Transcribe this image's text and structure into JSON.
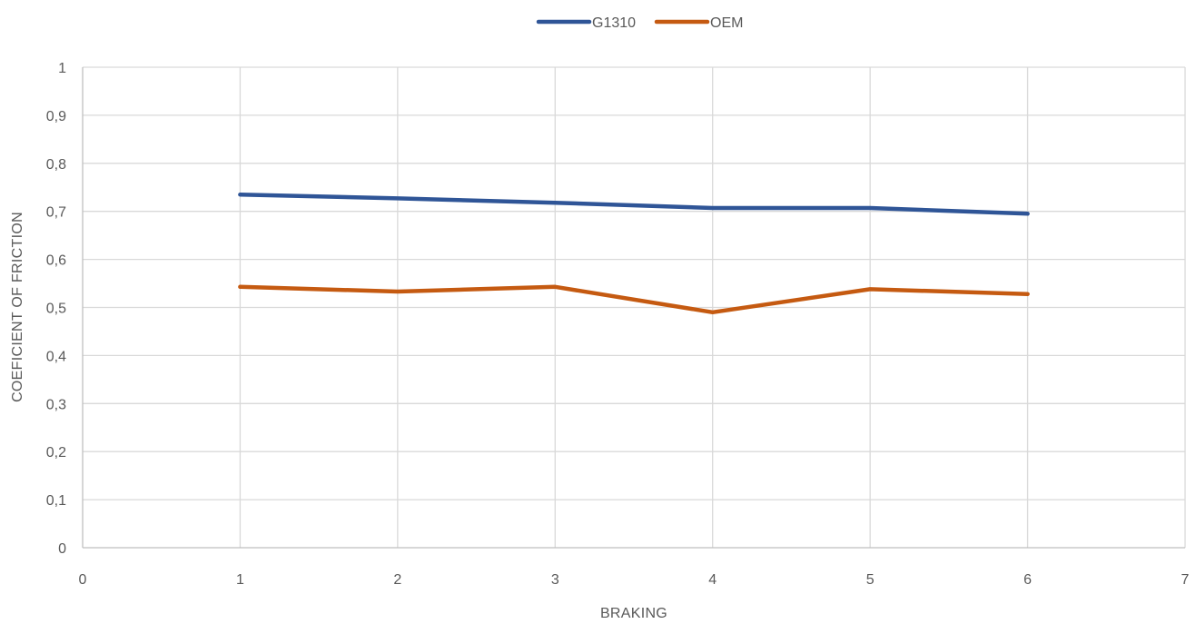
{
  "chart_data": {
    "type": "scatter",
    "title": "",
    "xlabel": "BRAKING",
    "ylabel": "COEFICIENT OF FRICTION",
    "xlim": [
      0,
      7
    ],
    "ylim": [
      0,
      1
    ],
    "x_ticks": [
      0,
      1,
      2,
      3,
      4,
      5,
      6,
      7
    ],
    "y_ticks": [
      0,
      0.1,
      0.2,
      0.3,
      0.4,
      0.5,
      0.6,
      0.7,
      0.8,
      0.9,
      1
    ],
    "x_tick_labels": [
      "0",
      "1",
      "2",
      "3",
      "4",
      "5",
      "6",
      "7"
    ],
    "y_tick_labels": [
      "0",
      "0,1",
      "0,2",
      "0,3",
      "0,4",
      "0,5",
      "0,6",
      "0,7",
      "0,8",
      "0,9",
      "1"
    ],
    "grid": true,
    "legend_position": "top-center",
    "markers": "none",
    "series": [
      {
        "name": "G1310",
        "color": "#2F5597",
        "x": [
          1,
          2,
          3,
          4,
          5,
          6
        ],
        "y": [
          0.735,
          0.727,
          0.718,
          0.707,
          0.707,
          0.695
        ]
      },
      {
        "name": "OEM",
        "color": "#C55A11",
        "x": [
          1,
          2,
          3,
          4,
          5,
          6
        ],
        "y": [
          0.543,
          0.533,
          0.543,
          0.49,
          0.538,
          0.528
        ]
      }
    ]
  }
}
